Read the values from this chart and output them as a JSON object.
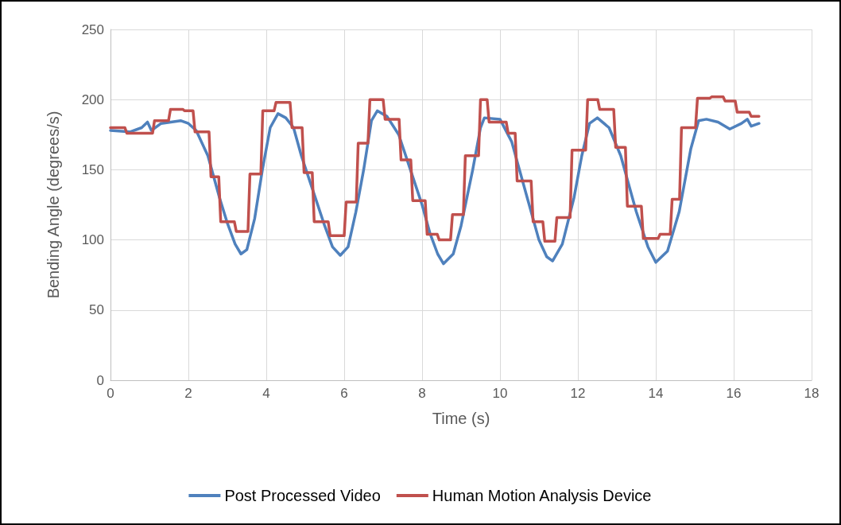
{
  "chart_data": {
    "type": "line",
    "xlabel": "Time (s)",
    "ylabel": "Bending Angle (degrees/s)",
    "xlim": [
      0,
      18
    ],
    "xticks": [
      0,
      2,
      4,
      6,
      8,
      10,
      12,
      14,
      16,
      18
    ],
    "ylim": [
      0,
      250
    ],
    "yticks": [
      0,
      50,
      100,
      150,
      200,
      250
    ],
    "grid": true,
    "legend": "bottom",
    "marker": "none",
    "line_style": "solid",
    "series": [
      {
        "name": "Post Processed Video",
        "color": "#4f81bd",
        "x": [
          0,
          0.5,
          0.8,
          0.95,
          1.05,
          1.3,
          1.8,
          2.0,
          2.2,
          2.5,
          2.8,
          3.0,
          3.2,
          3.35,
          3.5,
          3.7,
          3.9,
          4.1,
          4.3,
          4.5,
          4.7,
          4.9,
          5.2,
          5.5,
          5.7,
          5.9,
          6.1,
          6.3,
          6.5,
          6.7,
          6.85,
          7.1,
          7.4,
          7.7,
          8.0,
          8.2,
          8.4,
          8.55,
          8.8,
          9.0,
          9.3,
          9.5,
          9.6,
          10.0,
          10.3,
          10.7,
          11.0,
          11.2,
          11.35,
          11.6,
          11.9,
          12.1,
          12.3,
          12.5,
          12.8,
          13.1,
          13.5,
          13.8,
          14.0,
          14.3,
          14.6,
          14.9,
          15.1,
          15.3,
          15.6,
          15.9,
          16.2,
          16.35,
          16.45,
          16.65
        ],
        "values": [
          178,
          177,
          180,
          184,
          178,
          183,
          185,
          183,
          178,
          160,
          130,
          112,
          97,
          90,
          93,
          115,
          150,
          180,
          190,
          187,
          180,
          160,
          135,
          110,
          95,
          89,
          95,
          120,
          150,
          185,
          192,
          188,
          175,
          150,
          125,
          105,
          90,
          83,
          90,
          110,
          150,
          180,
          187,
          186,
          170,
          130,
          100,
          88,
          85,
          97,
          130,
          160,
          183,
          187,
          180,
          160,
          120,
          95,
          84,
          92,
          120,
          165,
          185,
          186,
          184,
          179,
          183,
          186,
          181,
          183
        ]
      },
      {
        "name": "Human Motion Analysis Device",
        "color": "#c0504d",
        "x": [
          0,
          0.37,
          0.42,
          1.08,
          1.13,
          1.49,
          1.54,
          1.86,
          1.9,
          2.12,
          2.17,
          2.53,
          2.58,
          2.78,
          2.83,
          3.18,
          3.23,
          3.53,
          3.58,
          3.86,
          3.91,
          4.2,
          4.25,
          4.61,
          4.66,
          4.92,
          4.97,
          5.18,
          5.23,
          5.59,
          5.64,
          6.0,
          6.05,
          6.31,
          6.36,
          6.61,
          6.66,
          7.0,
          7.05,
          7.41,
          7.46,
          7.71,
          7.76,
          8.08,
          8.13,
          8.39,
          8.44,
          8.73,
          8.78,
          9.06,
          9.11,
          9.45,
          9.5,
          9.67,
          9.72,
          10.16,
          10.21,
          10.39,
          10.44,
          10.8,
          10.85,
          11.1,
          11.15,
          11.41,
          11.46,
          11.8,
          11.85,
          12.2,
          12.25,
          12.51,
          12.56,
          12.92,
          12.97,
          13.22,
          13.27,
          13.63,
          13.68,
          14.06,
          14.11,
          14.37,
          14.42,
          14.61,
          14.66,
          15.02,
          15.07,
          15.39,
          15.44,
          15.73,
          15.78,
          16.04,
          16.09,
          16.4,
          16.45,
          16.65
        ],
        "values": [
          180,
          180,
          176,
          176,
          185,
          185,
          193,
          193,
          192,
          192,
          177,
          177,
          145,
          145,
          113,
          113,
          106,
          106,
          147,
          147,
          192,
          192,
          198,
          198,
          180,
          180,
          148,
          148,
          113,
          113,
          103,
          103,
          127,
          127,
          169,
          169,
          200,
          200,
          186,
          186,
          157,
          157,
          128,
          128,
          104,
          104,
          100,
          100,
          118,
          118,
          160,
          160,
          200,
          200,
          184,
          184,
          176,
          176,
          142,
          142,
          113,
          113,
          99,
          99,
          116,
          116,
          164,
          164,
          200,
          200,
          193,
          193,
          166,
          166,
          124,
          124,
          101,
          101,
          104,
          104,
          129,
          129,
          180,
          180,
          201,
          201,
          202,
          202,
          199,
          199,
          191,
          191,
          188,
          188
        ]
      }
    ]
  }
}
